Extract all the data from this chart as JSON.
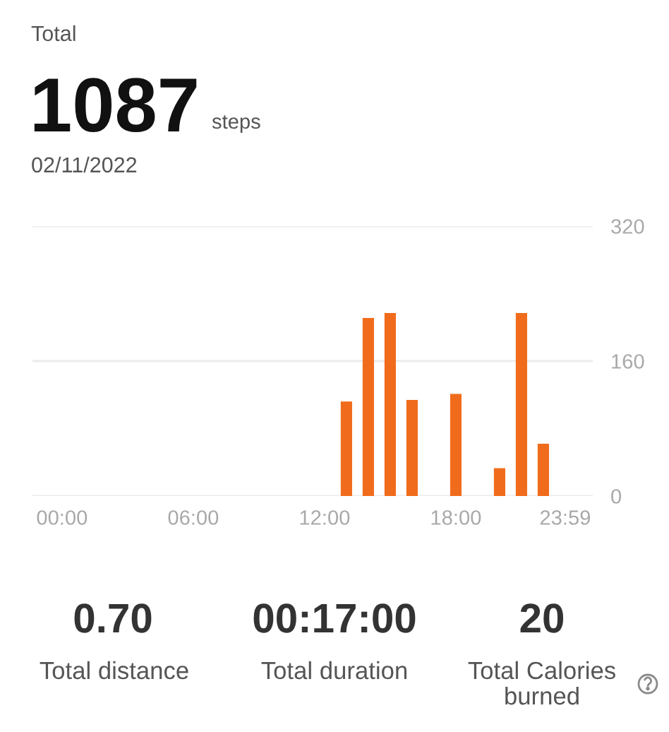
{
  "chart_data": {
    "type": "bar",
    "title": "Total",
    "annotations": [
      "1087",
      "steps",
      "02/11/2022",
      "0.70",
      "Total distance",
      "00:17:00",
      "Total duration",
      "20",
      "Total Calories\nburned"
    ],
    "categories": [
      "00:00",
      null,
      null,
      null,
      null,
      null,
      "06:00",
      null,
      null,
      null,
      null,
      null,
      "12:00",
      null,
      null,
      null,
      null,
      null,
      "18:00",
      null,
      null,
      null,
      null,
      "23:59"
    ],
    "values": [
      null,
      null,
      null,
      null,
      null,
      null,
      null,
      null,
      null,
      null,
      null,
      null,
      null,
      112,
      211,
      217,
      114,
      null,
      121,
      null,
      33,
      217,
      62,
      null
    ],
    "color": "#f06c1c",
    "ylim": [
      0,
      320
    ],
    "yticks": [
      0,
      160,
      320
    ],
    "grid": "y"
  }
}
